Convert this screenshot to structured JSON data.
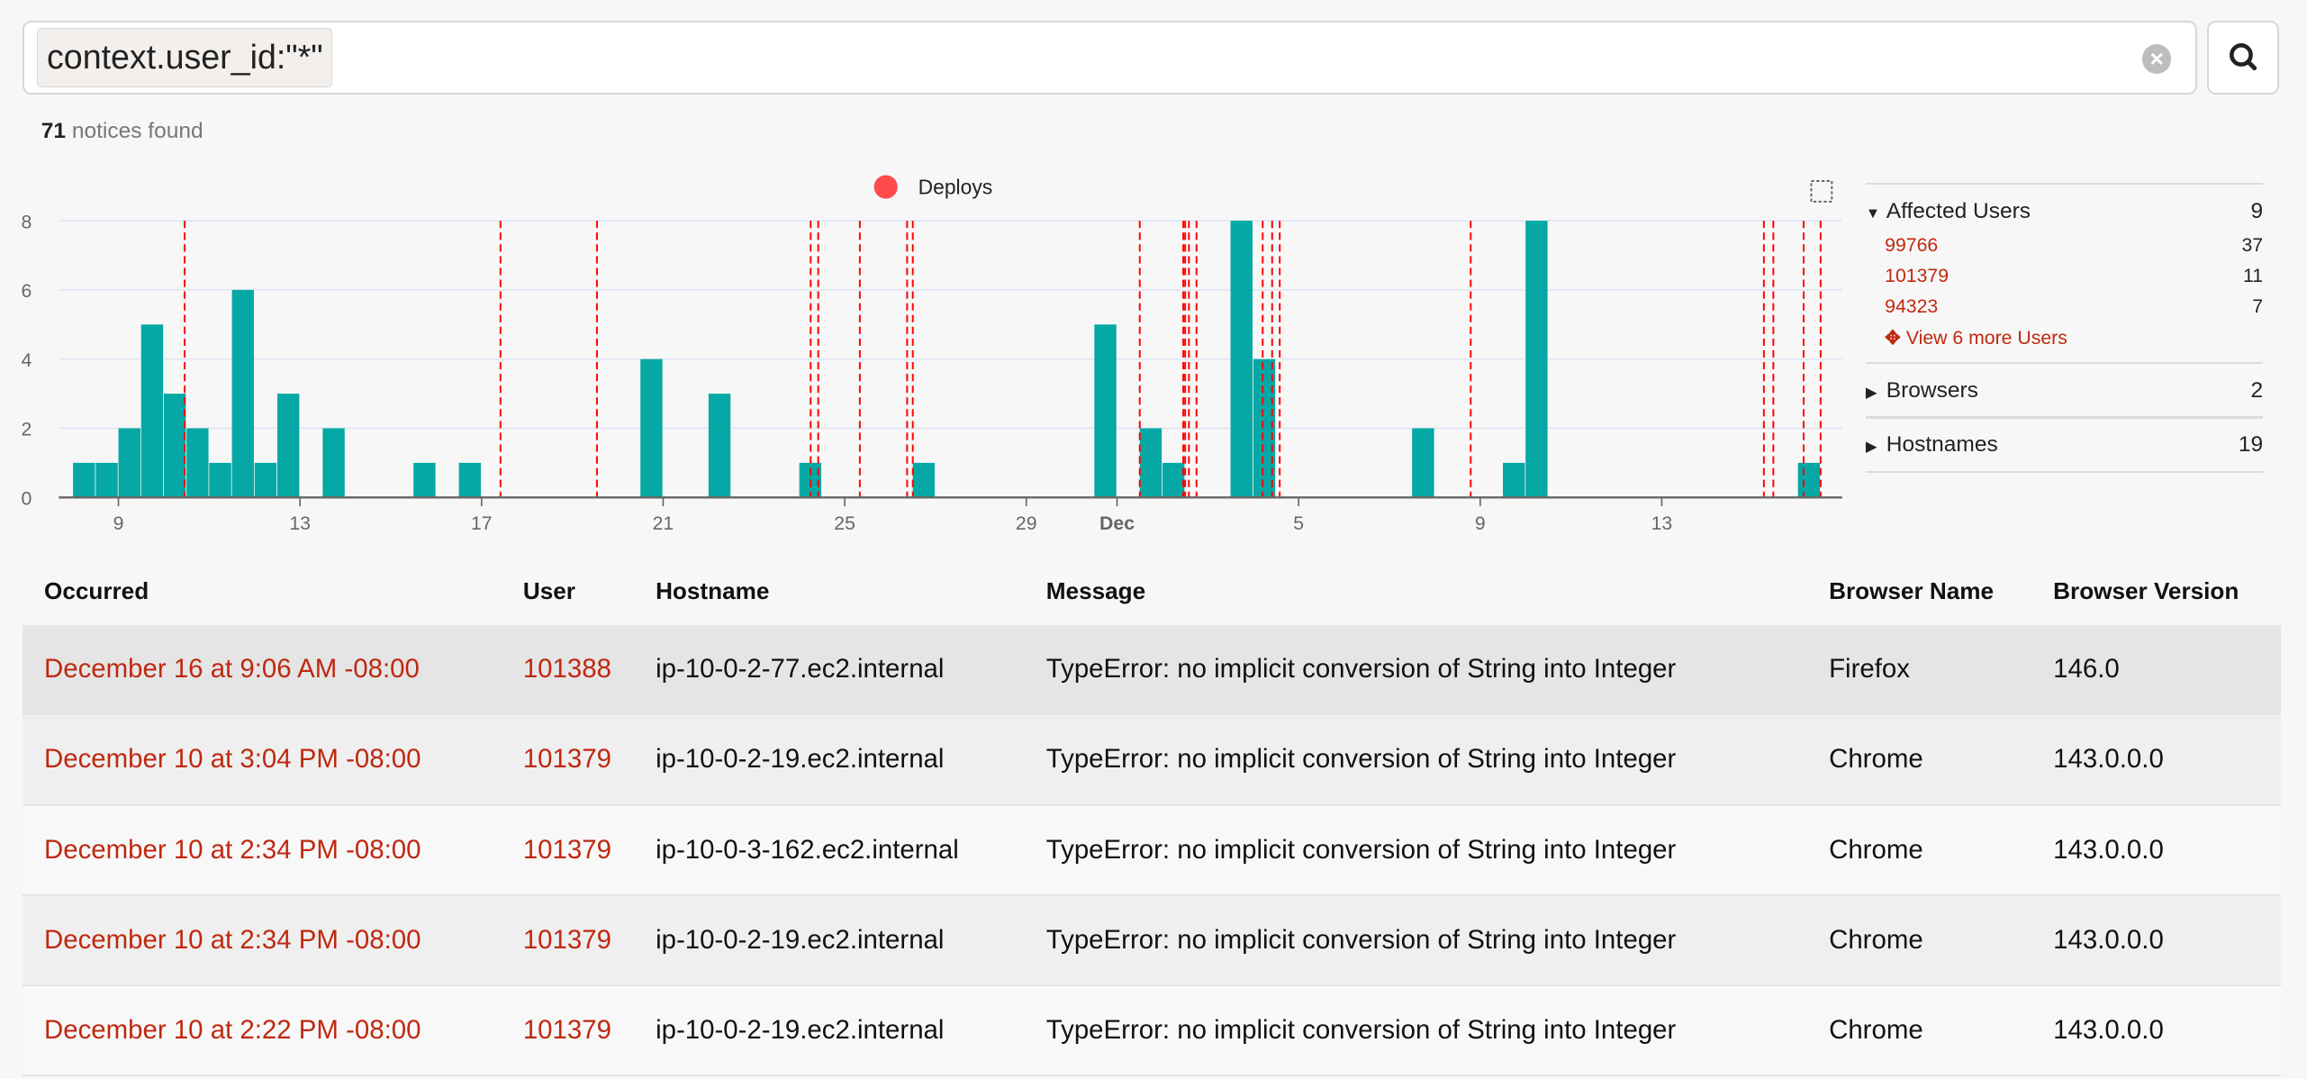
{
  "search": {
    "query": "context.user_id:\"*\"",
    "clear_icon": "clear-circle-icon",
    "search_icon": "magnifier-icon"
  },
  "results": {
    "count": "71",
    "label": "notices found"
  },
  "colors": {
    "bar": "#05a8a5",
    "deploy": "#ff0000",
    "link": "#c0280f"
  },
  "chart_data": {
    "type": "bar",
    "legend": {
      "label": "Deploys",
      "placement": "top-center"
    },
    "bin": "12 hours",
    "ylim": [
      0,
      8
    ],
    "yticks": [
      "0",
      "2",
      "4",
      "6",
      "8"
    ],
    "xticks": [
      {
        "label": "9",
        "date": "11-09"
      },
      {
        "label": "13",
        "date": "11-13"
      },
      {
        "label": "17",
        "date": "11-17"
      },
      {
        "label": "21",
        "date": "11-21"
      },
      {
        "label": "25",
        "date": "11-25"
      },
      {
        "label": "29",
        "date": "11-29"
      },
      {
        "label": "Dec",
        "date": "12-01",
        "bold": true
      },
      {
        "label": "5",
        "date": "12-05"
      },
      {
        "label": "9",
        "date": "12-09"
      },
      {
        "label": "13",
        "date": "12-13"
      }
    ],
    "bars": [
      {
        "start": "11-08 00:00",
        "value": 1
      },
      {
        "start": "11-08 12:00",
        "value": 1
      },
      {
        "start": "11-09 00:00",
        "value": 2
      },
      {
        "start": "11-09 12:00",
        "value": 5
      },
      {
        "start": "11-10 00:00",
        "value": 3
      },
      {
        "start": "11-10 12:00",
        "value": 2
      },
      {
        "start": "11-11 00:00",
        "value": 1
      },
      {
        "start": "11-11 12:00",
        "value": 6
      },
      {
        "start": "11-12 00:00",
        "value": 1
      },
      {
        "start": "11-12 12:00",
        "value": 3
      },
      {
        "start": "11-13 12:00",
        "value": 2
      },
      {
        "start": "11-15 12:00",
        "value": 1
      },
      {
        "start": "11-16 12:00",
        "value": 1
      },
      {
        "start": "11-20 12:00",
        "value": 4
      },
      {
        "start": "11-22 00:00",
        "value": 3
      },
      {
        "start": "11-24 00:00",
        "value": 1
      },
      {
        "start": "11-26 12:00",
        "value": 1
      },
      {
        "start": "11-30 12:00",
        "value": 5
      },
      {
        "start": "12-01 12:00",
        "value": 2
      },
      {
        "start": "12-02 00:00",
        "value": 1
      },
      {
        "start": "12-03 12:00",
        "value": 8
      },
      {
        "start": "12-04 00:00",
        "value": 4
      },
      {
        "start": "12-07 12:00",
        "value": 2
      },
      {
        "start": "12-09 12:00",
        "value": 1
      },
      {
        "start": "12-10 00:00",
        "value": 8
      },
      {
        "start": "12-16 00:00",
        "value": 1
      }
    ],
    "deploys": [
      "11-10 11:00",
      "11-17 10:00",
      "11-19 13:00",
      "11-24 06:00",
      "11-24 10:00",
      "11-25 08:00",
      "11-26 09:00",
      "11-26 12:00",
      "12-01 12:00",
      "12-02 11:00",
      "12-02 12:00",
      "12-02 14:00",
      "12-02 18:00",
      "12-04 05:00",
      "12-04 10:00",
      "12-04 14:00",
      "12-08 19:00",
      "12-15 06:00",
      "12-15 11:00",
      "12-16 03:00",
      "12-16 12:00"
    ]
  },
  "facets": {
    "affected_users": {
      "label": "Affected Users",
      "count": "9",
      "items": [
        {
          "id": "99766",
          "count": "37"
        },
        {
          "id": "101379",
          "count": "11"
        },
        {
          "id": "94323",
          "count": "7"
        }
      ],
      "more": "View 6 more Users"
    },
    "browsers": {
      "label": "Browsers",
      "count": "2"
    },
    "hostnames": {
      "label": "Hostnames",
      "count": "19"
    }
  },
  "table": {
    "headers": [
      "Occurred",
      "User",
      "Hostname",
      "Message",
      "Browser Name",
      "Browser Version"
    ],
    "rows": [
      [
        "December 16 at 9:06 AM -08:00",
        "101388",
        "ip-10-0-2-77.ec2.internal",
        "TypeError: no implicit conversion of String into Integer",
        "Firefox",
        "146.0"
      ],
      [
        "December 10 at 3:04 PM -08:00",
        "101379",
        "ip-10-0-2-19.ec2.internal",
        "TypeError: no implicit conversion of String into Integer",
        "Chrome",
        "143.0.0.0"
      ],
      [
        "December 10 at 2:34 PM -08:00",
        "101379",
        "ip-10-0-3-162.ec2.internal",
        "TypeError: no implicit conversion of String into Integer",
        "Chrome",
        "143.0.0.0"
      ],
      [
        "December 10 at 2:34 PM -08:00",
        "101379",
        "ip-10-0-2-19.ec2.internal",
        "TypeError: no implicit conversion of String into Integer",
        "Chrome",
        "143.0.0.0"
      ],
      [
        "December 10 at 2:22 PM -08:00",
        "101379",
        "ip-10-0-2-19.ec2.internal",
        "TypeError: no implicit conversion of String into Integer",
        "Chrome",
        "143.0.0.0"
      ]
    ]
  }
}
